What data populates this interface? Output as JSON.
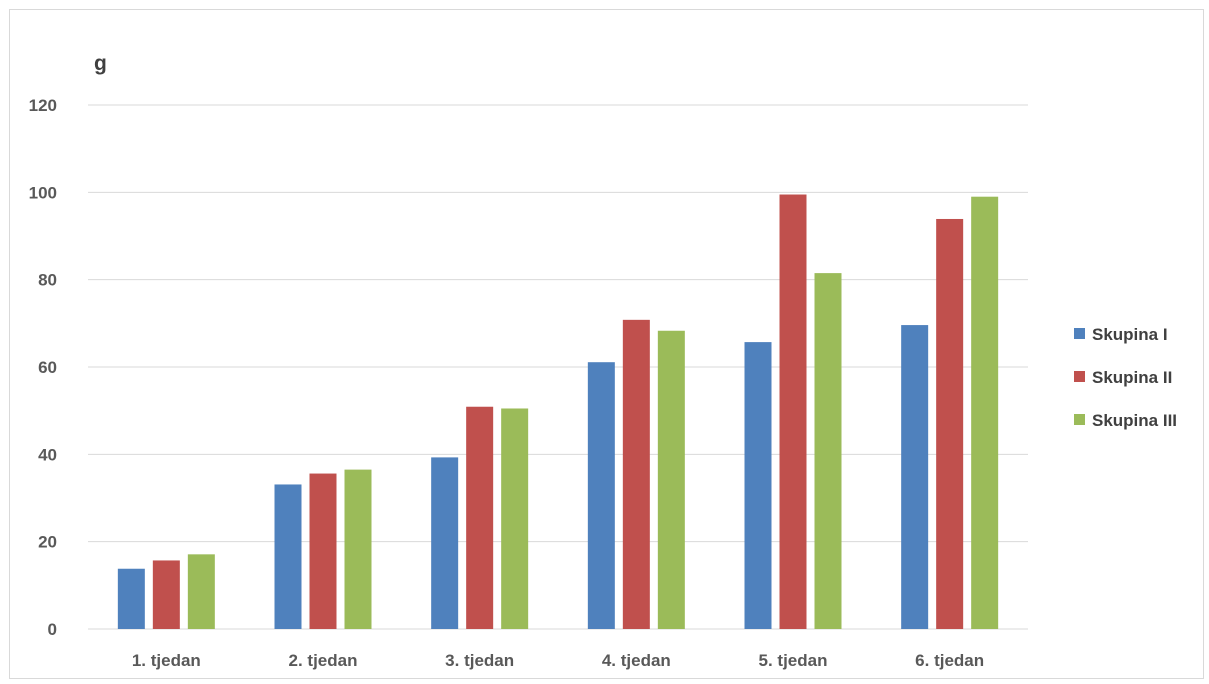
{
  "chart_data": {
    "type": "bar",
    "title": "",
    "xlabel": "",
    "ylabel": "g",
    "ylim": [
      0,
      120
    ],
    "yticks": [
      0,
      20,
      40,
      60,
      80,
      100,
      120
    ],
    "grid": true,
    "legend_position": "right",
    "categories": [
      "1. tjedan",
      "2. tjedan",
      "3. tjedan",
      "4. tjedan",
      "5. tjedan",
      "6. tjedan"
    ],
    "series": [
      {
        "name": "Skupina I",
        "color": "#4f81bd",
        "values": [
          13.8,
          33.1,
          39.3,
          61.1,
          65.7,
          69.6
        ]
      },
      {
        "name": "Skupina II",
        "color": "#c0504d",
        "values": [
          15.7,
          35.6,
          50.9,
          70.8,
          99.5,
          93.9
        ]
      },
      {
        "name": "Skupina III",
        "color": "#9bbb59",
        "values": [
          17.1,
          36.5,
          50.5,
          68.3,
          81.5,
          99.0
        ]
      }
    ]
  }
}
